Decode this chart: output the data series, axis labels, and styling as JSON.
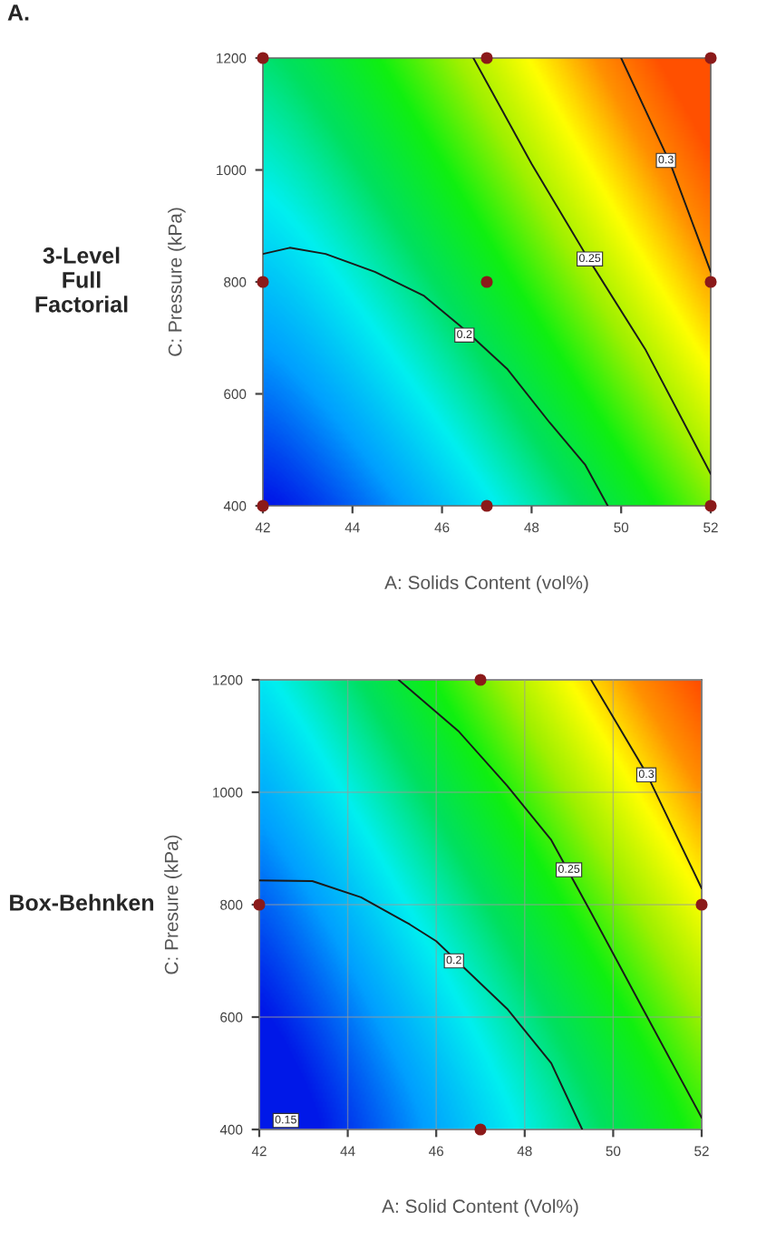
{
  "chart_data": [
    {
      "type": "scatter",
      "title": "3-Level Full Factorial",
      "xlabel": "A: Solids Content (vol%)",
      "ylabel": "C: Pressure (kPa)",
      "annotations": [
        "A.",
        {
          "text": "0.2",
          "x": 46.5,
          "y": 705
        },
        {
          "text": "0.25",
          "x": 49.3,
          "y": 841
        },
        {
          "text": "0.3",
          "x": 51.0,
          "y": 1017
        }
      ],
      "xlim": [
        42,
        52
      ],
      "xticks": [
        42,
        44,
        46,
        48,
        50,
        52
      ],
      "ylim": [
        400,
        1200
      ],
      "yticks": [
        400,
        600,
        800,
        1000,
        1200
      ],
      "grid": false,
      "marker": "circle",
      "series": [
        {
          "color": "#8b1a1a",
          "x": [
            42,
            47,
            52,
            42,
            47,
            52,
            42,
            47,
            52
          ],
          "values": [
            1200,
            1200,
            1200,
            800,
            800,
            800,
            400,
            400,
            400
          ]
        },
        {
          "type": "line",
          "color": "#1a1a1a",
          "marker": "none",
          "x": [
            42,
            42.6,
            43.4,
            44.5,
            45.6,
            46.5,
            47.45,
            48.4,
            49.2,
            49.7
          ],
          "values": [
            850,
            861,
            850,
            818,
            775,
            715,
            645,
            549,
            473,
            400
          ]
        },
        {
          "type": "line",
          "color": "#1a1a1a",
          "marker": "none",
          "x": [
            46.7,
            48.0,
            49.2,
            50.55,
            52
          ],
          "values": [
            1200,
            1011,
            850,
            678,
            457
          ]
        },
        {
          "type": "line",
          "color": "#1a1a1a",
          "marker": "none",
          "x": [
            50.0,
            51.1,
            52
          ],
          "values": [
            1200,
            1011,
            818
          ]
        }
      ]
    },
    {
      "type": "scatter",
      "title": "Box-Behnken",
      "xlabel": "A: Solid Content (Vol%)",
      "ylabel": "C: Presure (kPa)",
      "annotations": [
        {
          "text": "0.15",
          "x": 42.6,
          "y": 416
        },
        {
          "text": "0.2",
          "x": 46.4,
          "y": 700
        },
        {
          "text": "0.25",
          "x": 49.0,
          "y": 862
        },
        {
          "text": "0.3",
          "x": 50.75,
          "y": 1031
        }
      ],
      "xlim": [
        42,
        52
      ],
      "xticks": [
        42,
        44,
        46,
        48,
        50,
        52
      ],
      "ylim": [
        400,
        1200
      ],
      "yticks": [
        400,
        600,
        800,
        1000,
        1200
      ],
      "grid": true,
      "marker": "circle",
      "series": [
        {
          "color": "#8b1a1a",
          "x": [
            47,
            42,
            52,
            47
          ],
          "values": [
            1200,
            800,
            800,
            400
          ]
        },
        {
          "type": "line",
          "color": "#1a1a1a",
          "marker": "none",
          "x": [
            42,
            43.2,
            44.3,
            45.4,
            46.0,
            47.6,
            48.6,
            49.3
          ],
          "values": [
            843,
            842,
            813,
            765,
            735,
            615,
            518,
            400
          ]
        },
        {
          "type": "line",
          "color": "#1a1a1a",
          "marker": "none",
          "x": [
            45.15,
            46.5,
            47.6,
            48.6,
            49.5,
            50.6,
            52
          ],
          "values": [
            1200,
            1109,
            1012,
            915,
            786,
            625,
            421
          ]
        },
        {
          "type": "line",
          "color": "#1a1a1a",
          "marker": "none",
          "x": [
            49.5,
            50.75,
            52
          ],
          "values": [
            1200,
            1034,
            829
          ]
        }
      ]
    }
  ]
}
